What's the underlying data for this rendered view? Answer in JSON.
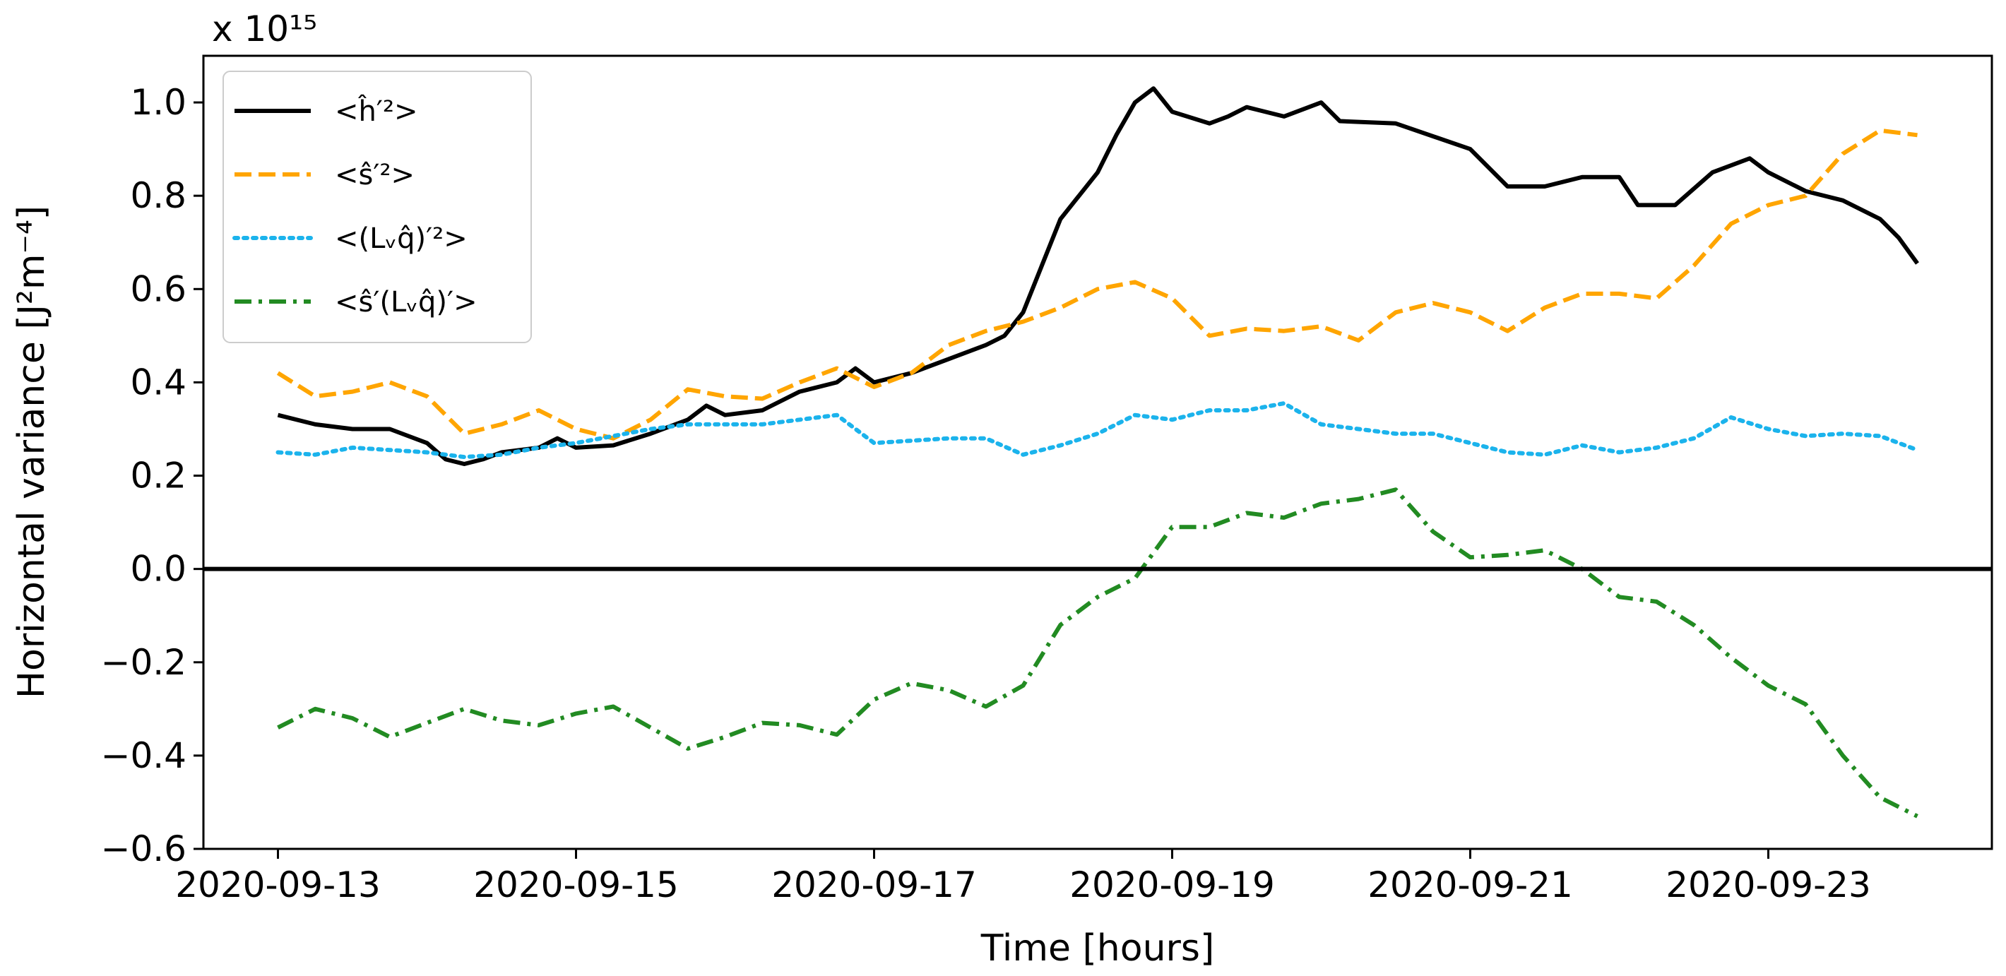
{
  "chart_data": {
    "type": "line",
    "title": "",
    "xlabel": "Time [hours]",
    "ylabel": "Horizontal variance [J²m⁻⁴]",
    "y_multiplier": "x 10¹⁵",
    "x_ticks": [
      "2020-09-13",
      "2020-09-15",
      "2020-09-17",
      "2020-09-19",
      "2020-09-21",
      "2020-09-23"
    ],
    "xlim": [
      "2020-09-12T12:00",
      "2020-09-24T12:00"
    ],
    "y_ticks": [
      "1.0",
      "0.8",
      "0.6",
      "0.4",
      "0.2",
      "0.0",
      "−0.2",
      "−0.4",
      "−0.6"
    ],
    "ylim": [
      -0.6,
      1.1
    ],
    "legend_position": "top-left",
    "grid": false,
    "zero_line": true,
    "series": [
      {
        "name": "<ĥ′²>",
        "color": "#000000",
        "style": "solid",
        "points": [
          [
            "2020-09-13T00:00",
            0.33
          ],
          [
            "2020-09-13T06:00",
            0.31
          ],
          [
            "2020-09-13T12:00",
            0.3
          ],
          [
            "2020-09-13T18:00",
            0.3
          ],
          [
            "2020-09-14T00:00",
            0.27
          ],
          [
            "2020-09-14T03:00",
            0.235
          ],
          [
            "2020-09-14T06:00",
            0.225
          ],
          [
            "2020-09-14T09:00",
            0.235
          ],
          [
            "2020-09-14T12:00",
            0.25
          ],
          [
            "2020-09-14T18:00",
            0.26
          ],
          [
            "2020-09-14T21:00",
            0.28
          ],
          [
            "2020-09-15T00:00",
            0.26
          ],
          [
            "2020-09-15T06:00",
            0.265
          ],
          [
            "2020-09-15T12:00",
            0.29
          ],
          [
            "2020-09-15T18:00",
            0.32
          ],
          [
            "2020-09-15T21:00",
            0.35
          ],
          [
            "2020-09-16T00:00",
            0.33
          ],
          [
            "2020-09-16T06:00",
            0.34
          ],
          [
            "2020-09-16T12:00",
            0.38
          ],
          [
            "2020-09-16T18:00",
            0.4
          ],
          [
            "2020-09-16T21:00",
            0.43
          ],
          [
            "2020-09-17T00:00",
            0.4
          ],
          [
            "2020-09-17T06:00",
            0.42
          ],
          [
            "2020-09-17T12:00",
            0.45
          ],
          [
            "2020-09-17T18:00",
            0.48
          ],
          [
            "2020-09-17T21:00",
            0.5
          ],
          [
            "2020-09-18T00:00",
            0.55
          ],
          [
            "2020-09-18T03:00",
            0.65
          ],
          [
            "2020-09-18T06:00",
            0.75
          ],
          [
            "2020-09-18T09:00",
            0.8
          ],
          [
            "2020-09-18T12:00",
            0.85
          ],
          [
            "2020-09-18T15:00",
            0.93
          ],
          [
            "2020-09-18T18:00",
            1.0
          ],
          [
            "2020-09-18T21:00",
            1.03
          ],
          [
            "2020-09-19T00:00",
            0.98
          ],
          [
            "2020-09-19T06:00",
            0.955
          ],
          [
            "2020-09-19T09:00",
            0.97
          ],
          [
            "2020-09-19T12:00",
            0.99
          ],
          [
            "2020-09-19T18:00",
            0.97
          ],
          [
            "2020-09-20T00:00",
            1.0
          ],
          [
            "2020-09-20T03:00",
            0.96
          ],
          [
            "2020-09-20T12:00",
            0.955
          ],
          [
            "2020-09-21T00:00",
            0.9
          ],
          [
            "2020-09-21T06:00",
            0.82
          ],
          [
            "2020-09-21T12:00",
            0.82
          ],
          [
            "2020-09-21T18:00",
            0.84
          ],
          [
            "2020-09-22T00:00",
            0.84
          ],
          [
            "2020-09-22T03:00",
            0.78
          ],
          [
            "2020-09-22T09:00",
            0.78
          ],
          [
            "2020-09-22T15:00",
            0.85
          ],
          [
            "2020-09-22T21:00",
            0.88
          ],
          [
            "2020-09-23T00:00",
            0.85
          ],
          [
            "2020-09-23T06:00",
            0.81
          ],
          [
            "2020-09-23T12:00",
            0.79
          ],
          [
            "2020-09-23T18:00",
            0.75
          ],
          [
            "2020-09-23T21:00",
            0.71
          ],
          [
            "2020-09-24T00:00",
            0.655
          ]
        ]
      },
      {
        "name": "<ŝ′²>",
        "color": "#ffa500",
        "style": "dashed",
        "points": [
          [
            "2020-09-13T00:00",
            0.42
          ],
          [
            "2020-09-13T06:00",
            0.37
          ],
          [
            "2020-09-13T12:00",
            0.38
          ],
          [
            "2020-09-13T18:00",
            0.4
          ],
          [
            "2020-09-14T00:00",
            0.37
          ],
          [
            "2020-09-14T06:00",
            0.29
          ],
          [
            "2020-09-14T12:00",
            0.31
          ],
          [
            "2020-09-14T18:00",
            0.34
          ],
          [
            "2020-09-15T00:00",
            0.3
          ],
          [
            "2020-09-15T06:00",
            0.28
          ],
          [
            "2020-09-15T12:00",
            0.32
          ],
          [
            "2020-09-15T18:00",
            0.385
          ],
          [
            "2020-09-16T00:00",
            0.37
          ],
          [
            "2020-09-16T06:00",
            0.365
          ],
          [
            "2020-09-16T12:00",
            0.4
          ],
          [
            "2020-09-16T18:00",
            0.43
          ],
          [
            "2020-09-17T00:00",
            0.39
          ],
          [
            "2020-09-17T06:00",
            0.42
          ],
          [
            "2020-09-17T12:00",
            0.48
          ],
          [
            "2020-09-17T18:00",
            0.51
          ],
          [
            "2020-09-18T00:00",
            0.53
          ],
          [
            "2020-09-18T06:00",
            0.56
          ],
          [
            "2020-09-18T12:00",
            0.6
          ],
          [
            "2020-09-18T18:00",
            0.615
          ],
          [
            "2020-09-19T00:00",
            0.58
          ],
          [
            "2020-09-19T06:00",
            0.5
          ],
          [
            "2020-09-19T12:00",
            0.515
          ],
          [
            "2020-09-19T18:00",
            0.51
          ],
          [
            "2020-09-20T00:00",
            0.52
          ],
          [
            "2020-09-20T06:00",
            0.49
          ],
          [
            "2020-09-20T12:00",
            0.55
          ],
          [
            "2020-09-20T18:00",
            0.57
          ],
          [
            "2020-09-21T00:00",
            0.55
          ],
          [
            "2020-09-21T06:00",
            0.51
          ],
          [
            "2020-09-21T12:00",
            0.56
          ],
          [
            "2020-09-21T18:00",
            0.59
          ],
          [
            "2020-09-22T00:00",
            0.59
          ],
          [
            "2020-09-22T06:00",
            0.58
          ],
          [
            "2020-09-22T12:00",
            0.65
          ],
          [
            "2020-09-22T18:00",
            0.74
          ],
          [
            "2020-09-23T00:00",
            0.78
          ],
          [
            "2020-09-23T06:00",
            0.8
          ],
          [
            "2020-09-23T12:00",
            0.89
          ],
          [
            "2020-09-23T18:00",
            0.94
          ],
          [
            "2020-09-24T00:00",
            0.93
          ]
        ]
      },
      {
        "name": "<(Lᵥq̂)′²>",
        "color": "#1bb3ec",
        "style": "dotted",
        "points": [
          [
            "2020-09-13T00:00",
            0.25
          ],
          [
            "2020-09-13T06:00",
            0.245
          ],
          [
            "2020-09-13T12:00",
            0.26
          ],
          [
            "2020-09-13T18:00",
            0.255
          ],
          [
            "2020-09-14T00:00",
            0.25
          ],
          [
            "2020-09-14T06:00",
            0.24
          ],
          [
            "2020-09-14T12:00",
            0.245
          ],
          [
            "2020-09-14T18:00",
            0.26
          ],
          [
            "2020-09-15T00:00",
            0.27
          ],
          [
            "2020-09-15T06:00",
            0.285
          ],
          [
            "2020-09-15T12:00",
            0.3
          ],
          [
            "2020-09-15T18:00",
            0.31
          ],
          [
            "2020-09-16T00:00",
            0.31
          ],
          [
            "2020-09-16T06:00",
            0.31
          ],
          [
            "2020-09-16T12:00",
            0.32
          ],
          [
            "2020-09-16T18:00",
            0.33
          ],
          [
            "2020-09-17T00:00",
            0.27
          ],
          [
            "2020-09-17T06:00",
            0.275
          ],
          [
            "2020-09-17T12:00",
            0.28
          ],
          [
            "2020-09-17T18:00",
            0.28
          ],
          [
            "2020-09-18T00:00",
            0.245
          ],
          [
            "2020-09-18T06:00",
            0.265
          ],
          [
            "2020-09-18T12:00",
            0.29
          ],
          [
            "2020-09-18T18:00",
            0.33
          ],
          [
            "2020-09-19T00:00",
            0.32
          ],
          [
            "2020-09-19T06:00",
            0.34
          ],
          [
            "2020-09-19T12:00",
            0.34
          ],
          [
            "2020-09-19T18:00",
            0.355
          ],
          [
            "2020-09-20T00:00",
            0.31
          ],
          [
            "2020-09-20T06:00",
            0.3
          ],
          [
            "2020-09-20T12:00",
            0.29
          ],
          [
            "2020-09-20T18:00",
            0.29
          ],
          [
            "2020-09-21T00:00",
            0.27
          ],
          [
            "2020-09-21T06:00",
            0.25
          ],
          [
            "2020-09-21T12:00",
            0.245
          ],
          [
            "2020-09-21T18:00",
            0.265
          ],
          [
            "2020-09-22T00:00",
            0.25
          ],
          [
            "2020-09-22T06:00",
            0.26
          ],
          [
            "2020-09-22T12:00",
            0.28
          ],
          [
            "2020-09-22T18:00",
            0.325
          ],
          [
            "2020-09-23T00:00",
            0.3
          ],
          [
            "2020-09-23T06:00",
            0.285
          ],
          [
            "2020-09-23T12:00",
            0.29
          ],
          [
            "2020-09-23T18:00",
            0.285
          ],
          [
            "2020-09-24T00:00",
            0.255
          ]
        ]
      },
      {
        "name": "<ŝ′(Lᵥq̂)′>",
        "color": "#228b22",
        "style": "dashdot",
        "points": [
          [
            "2020-09-13T00:00",
            -0.34
          ],
          [
            "2020-09-13T06:00",
            -0.3
          ],
          [
            "2020-09-13T12:00",
            -0.32
          ],
          [
            "2020-09-13T18:00",
            -0.36
          ],
          [
            "2020-09-14T00:00",
            -0.33
          ],
          [
            "2020-09-14T06:00",
            -0.3
          ],
          [
            "2020-09-14T12:00",
            -0.325
          ],
          [
            "2020-09-14T18:00",
            -0.335
          ],
          [
            "2020-09-15T00:00",
            -0.31
          ],
          [
            "2020-09-15T06:00",
            -0.295
          ],
          [
            "2020-09-15T12:00",
            -0.34
          ],
          [
            "2020-09-15T18:00",
            -0.385
          ],
          [
            "2020-09-16T00:00",
            -0.36
          ],
          [
            "2020-09-16T06:00",
            -0.33
          ],
          [
            "2020-09-16T12:00",
            -0.335
          ],
          [
            "2020-09-16T18:00",
            -0.355
          ],
          [
            "2020-09-17T00:00",
            -0.28
          ],
          [
            "2020-09-17T06:00",
            -0.245
          ],
          [
            "2020-09-17T12:00",
            -0.26
          ],
          [
            "2020-09-17T18:00",
            -0.295
          ],
          [
            "2020-09-18T00:00",
            -0.25
          ],
          [
            "2020-09-18T06:00",
            -0.12
          ],
          [
            "2020-09-18T12:00",
            -0.06
          ],
          [
            "2020-09-18T18:00",
            -0.02
          ],
          [
            "2020-09-19T00:00",
            0.09
          ],
          [
            "2020-09-19T06:00",
            0.09
          ],
          [
            "2020-09-19T12:00",
            0.12
          ],
          [
            "2020-09-19T18:00",
            0.11
          ],
          [
            "2020-09-20T00:00",
            0.14
          ],
          [
            "2020-09-20T06:00",
            0.15
          ],
          [
            "2020-09-20T12:00",
            0.17
          ],
          [
            "2020-09-20T18:00",
            0.08
          ],
          [
            "2020-09-21T00:00",
            0.025
          ],
          [
            "2020-09-21T06:00",
            0.03
          ],
          [
            "2020-09-21T12:00",
            0.04
          ],
          [
            "2020-09-21T18:00",
            0.0
          ],
          [
            "2020-09-22T00:00",
            -0.06
          ],
          [
            "2020-09-22T06:00",
            -0.07
          ],
          [
            "2020-09-22T12:00",
            -0.12
          ],
          [
            "2020-09-22T18:00",
            -0.19
          ],
          [
            "2020-09-23T00:00",
            -0.25
          ],
          [
            "2020-09-23T06:00",
            -0.29
          ],
          [
            "2020-09-23T12:00",
            -0.4
          ],
          [
            "2020-09-23T18:00",
            -0.49
          ],
          [
            "2020-09-24T00:00",
            -0.53
          ]
        ]
      }
    ]
  }
}
